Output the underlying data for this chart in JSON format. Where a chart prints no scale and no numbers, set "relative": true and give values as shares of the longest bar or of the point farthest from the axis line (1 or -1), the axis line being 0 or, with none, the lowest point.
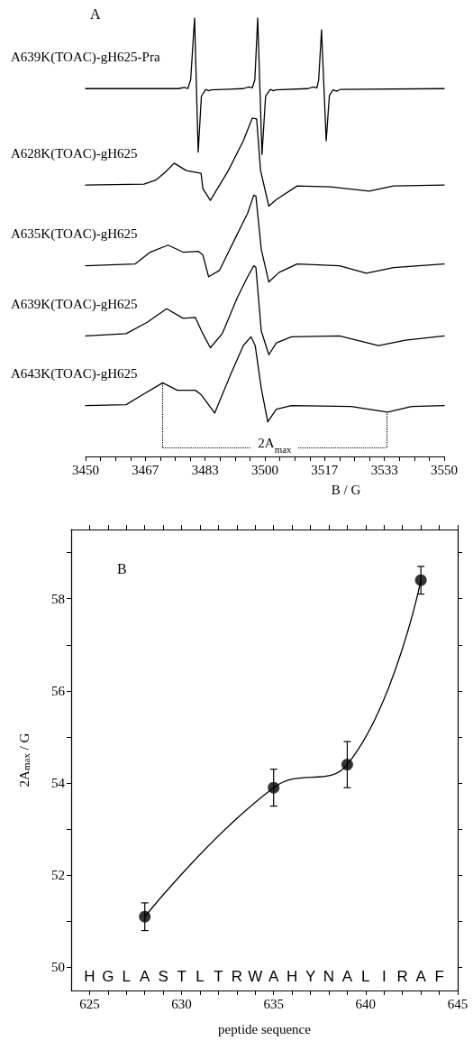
{
  "chart_data": [
    {
      "type": "line",
      "title": "A",
      "xlabel": "B / G",
      "relative": true,
      "tick_labels": "x",
      "marker": "none",
      "line_style": "solid",
      "xlim": [
        3450,
        3550
      ],
      "xticks": [
        3450,
        {
          "value": 3454.17,
          "label": null
        },
        {
          "value": 3458.33,
          "label": null
        },
        {
          "value": 3462.5,
          "label": null
        },
        {
          "value": 3466.67,
          "label": "3467"
        },
        {
          "value": 3470.83,
          "label": null
        },
        {
          "value": 3475,
          "label": null
        },
        {
          "value": 3479.17,
          "label": null
        },
        {
          "value": 3483.33,
          "label": "3483"
        },
        {
          "value": 3487.5,
          "label": null
        },
        {
          "value": 3491.67,
          "label": null
        },
        {
          "value": 3495.83,
          "label": null
        },
        3500,
        {
          "value": 3504.17,
          "label": null
        },
        {
          "value": 3508.33,
          "label": null
        },
        {
          "value": 3512.5,
          "label": null
        },
        {
          "value": 3516.67,
          "label": "3517"
        },
        {
          "value": 3520.83,
          "label": null
        },
        {
          "value": 3525,
          "label": null
        },
        {
          "value": 3529.17,
          "label": null
        },
        {
          "value": 3533.33,
          "label": "3533"
        },
        {
          "value": 3537.5,
          "label": null
        },
        {
          "value": 3541.67,
          "label": null
        },
        {
          "value": 3545.83,
          "label": null
        },
        3550
      ],
      "ref_lines": [
        {
          "axis": "x",
          "value": 3471.5,
          "color": "#000000",
          "line_style": "dotted"
        },
        {
          "axis": "x",
          "value": 3534,
          "color": "#000000",
          "line_style": "dotted"
        }
      ],
      "annotations": [
        "2A$_{max}$"
      ],
      "series": [
        {
          "name": "A639K(TOAC)-gH625-Pra",
          "color": "#000000",
          "x": [
            3450,
            3476,
            3477.5,
            3478.5,
            3479.3,
            3480.4,
            3481.4,
            3482.3,
            3483.5,
            3484.3,
            3485,
            3494,
            3495.5,
            3496.5,
            3497.2,
            3498,
            3499.2,
            3500.2,
            3501.5,
            3502.4,
            3503,
            3512,
            3513.5,
            3514.5,
            3515,
            3515.8,
            3517.1,
            3518,
            3519,
            3520,
            3521,
            3550
          ],
          "values": [
            0.839,
            0.839,
            0.842,
            0.839,
            0.859,
            1.0,
            0.694,
            0.822,
            0.837,
            0.834,
            0.836,
            0.839,
            0.843,
            0.841,
            0.859,
            1.0,
            0.689,
            0.822,
            0.837,
            0.834,
            0.836,
            0.839,
            0.843,
            0.841,
            0.859,
            0.973,
            0.72,
            0.824,
            0.836,
            0.833,
            0.837,
            0.839
          ]
        },
        {
          "name": "A628K(TOAC)-gH625",
          "color": "#000000",
          "x": [
            3450,
            3466.3,
            3469.7,
            3472.2,
            3474.7,
            3478.1,
            3482.2,
            3482.7,
            3484.8,
            3489.8,
            3494.0,
            3496.5,
            3497.7,
            3498.8,
            3501.1,
            3503.2,
            3509.0,
            3518.3,
            3529.1,
            3535.9,
            3550
          ],
          "values": [
            0.619,
            0.621,
            0.631,
            0.648,
            0.669,
            0.652,
            0.646,
            0.611,
            0.584,
            0.652,
            0.72,
            0.772,
            0.77,
            0.652,
            0.571,
            0.586,
            0.617,
            0.615,
            0.605,
            0.617,
            0.619
          ]
        },
        {
          "name": "A635K(TOAC)-gH625",
          "color": "#000000",
          "x": [
            3450,
            3463.8,
            3468.0,
            3473.0,
            3477.2,
            3481.4,
            3482.7,
            3484.3,
            3487.3,
            3492.3,
            3495.2,
            3496.9,
            3497.5,
            3499.0,
            3501.1,
            3504.0,
            3509.0,
            3520.8,
            3528.3,
            3535.9,
            3550
          ],
          "values": [
            0.435,
            0.439,
            0.466,
            0.482,
            0.466,
            0.468,
            0.46,
            0.41,
            0.424,
            0.507,
            0.555,
            0.596,
            0.594,
            0.472,
            0.398,
            0.42,
            0.439,
            0.435,
            0.418,
            0.431,
            0.439
          ]
        },
        {
          "name": "A639K(TOAC)-gH625",
          "color": "#000000",
          "x": [
            3450,
            3461.3,
            3467.2,
            3472.6,
            3477.2,
            3480.6,
            3482.7,
            3484.8,
            3488.1,
            3492.3,
            3495.2,
            3496.9,
            3497.5,
            3499.0,
            3501.1,
            3503.2,
            3507.4,
            3520.8,
            3531.7,
            3539.2,
            3550
          ],
          "values": [
            0.275,
            0.28,
            0.306,
            0.337,
            0.315,
            0.317,
            0.28,
            0.248,
            0.28,
            0.362,
            0.41,
            0.435,
            0.431,
            0.286,
            0.232,
            0.259,
            0.273,
            0.275,
            0.253,
            0.265,
            0.275
          ]
        },
        {
          "name": "A643K(TOAC)-gH625",
          "color": "#000000",
          "x": [
            3450,
            3461.3,
            3465.5,
            3471.5,
            3475.6,
            3480.6,
            3482.2,
            3486.0,
            3490.6,
            3494.0,
            3496.1,
            3497.3,
            3499.0,
            3500.8,
            3503.2,
            3507.4,
            3524.1,
            3534.2,
            3540.9,
            3550
          ],
          "values": [
            0.116,
            0.118,
            0.139,
            0.168,
            0.151,
            0.151,
            0.141,
            0.099,
            0.19,
            0.253,
            0.273,
            0.253,
            0.155,
            0.079,
            0.108,
            0.116,
            0.114,
            0.101,
            0.114,
            0.116
          ]
        }
      ]
    },
    {
      "type": "scatter",
      "title": "B",
      "xlabel": "peptide sequence",
      "ylabel": "2A$_{max}$ / G",
      "marker": "circle",
      "xlim": [
        624,
        645
      ],
      "ylim": [
        49.5,
        59.5
      ],
      "xticks": [
        625,
        {
          "value": 626,
          "label": null
        },
        {
          "value": 627,
          "label": null
        },
        {
          "value": 628,
          "label": null
        },
        {
          "value": 629,
          "label": null
        },
        630,
        {
          "value": 631,
          "label": null
        },
        {
          "value": 632,
          "label": null
        },
        {
          "value": 633,
          "label": null
        },
        {
          "value": 634,
          "label": null
        },
        635,
        {
          "value": 636,
          "label": null
        },
        {
          "value": 637,
          "label": null
        },
        {
          "value": 638,
          "label": null
        },
        {
          "value": 639,
          "label": null
        },
        640,
        {
          "value": 641,
          "label": null
        },
        {
          "value": 642,
          "label": null
        },
        {
          "value": 643,
          "label": null
        },
        {
          "value": 644,
          "label": null
        },
        645
      ],
      "yticks": [
        50,
        {
          "value": 51,
          "label": null
        },
        52,
        {
          "value": 53,
          "label": null
        },
        54,
        {
          "value": 55,
          "label": null
        },
        56,
        {
          "value": 57,
          "label": null
        },
        58,
        {
          "value": 59,
          "label": null
        }
      ],
      "x": [
        628,
        635,
        639,
        643
      ],
      "series": [
        {
          "color": "#000000",
          "values": [
            51.1,
            53.9,
            54.4,
            58.4
          ],
          "errors": [
            [
              50.8,
              51.4
            ],
            [
              53.5,
              54.3
            ],
            [
              53.9,
              54.9
            ],
            [
              58.1,
              58.7
            ]
          ]
        },
        {
          "type": "line",
          "color": "#000000",
          "marker": "none",
          "x": [
            628,
            635,
            639,
            643
          ],
          "values": [
            51.1,
            53.9,
            54.4,
            58.4
          ]
        }
      ],
      "annotations": [
        "H",
        "G",
        "L",
        "A",
        "S",
        "T",
        "L",
        "T",
        "R",
        "W",
        "A",
        "H",
        "Y",
        "N",
        "A",
        "L",
        "I",
        "R",
        "A",
        "F"
      ]
    }
  ]
}
